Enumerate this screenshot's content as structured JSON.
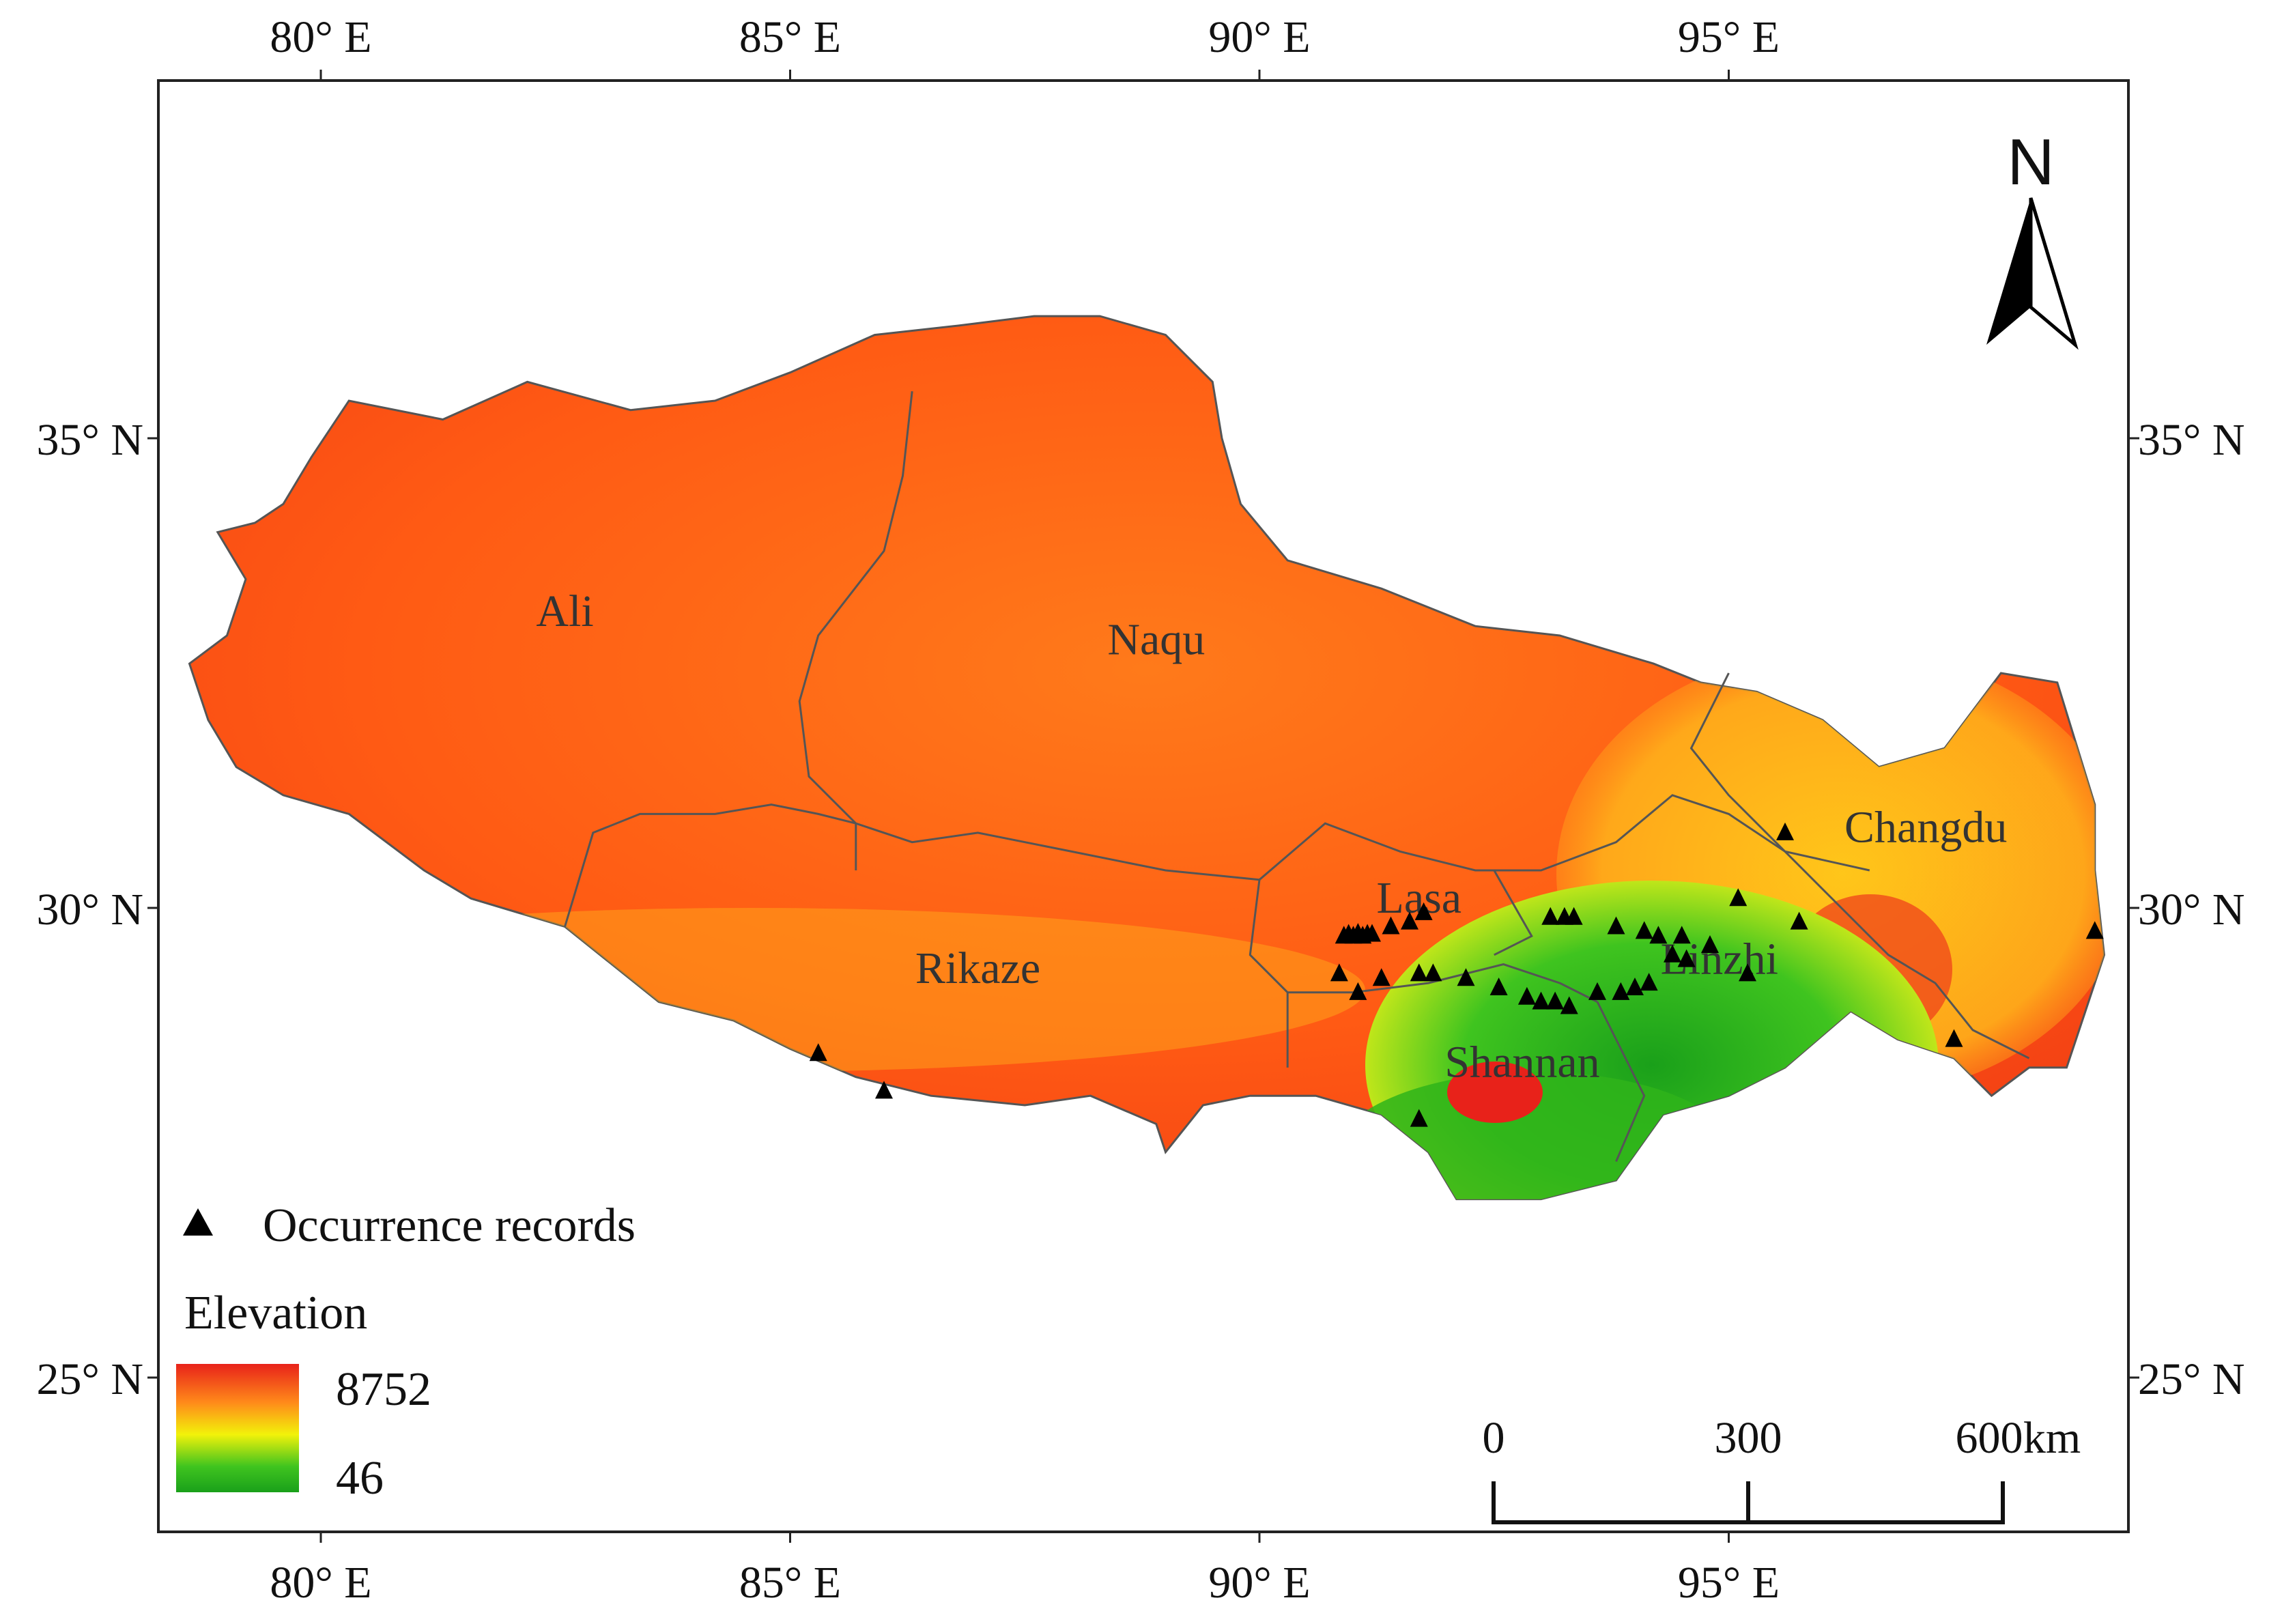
{
  "axes": {
    "lon_labels": [
      "80° E",
      "85° E",
      "90° E",
      "95° E"
    ],
    "lat_labels": [
      "35° N",
      "30° N",
      "25° N"
    ]
  },
  "regions": [
    {
      "key": "ali",
      "name": "Ali"
    },
    {
      "key": "naqu",
      "name": "Naqu"
    },
    {
      "key": "rikaze",
      "name": "Rikaze"
    },
    {
      "key": "lasa",
      "name": "Lasa"
    },
    {
      "key": "linzhi",
      "name": "Linzhi"
    },
    {
      "key": "shannan",
      "name": "Shannan"
    },
    {
      "key": "changdu",
      "name": "Changdu"
    }
  ],
  "legend": {
    "points_label": "Occurrence records",
    "elevation_title": "Elevation",
    "elevation_max": "8752",
    "elevation_min": "46",
    "colors": [
      "#e8221a",
      "#ff8a1a",
      "#f2f20a",
      "#3fc41f",
      "#1aa01a"
    ]
  },
  "north_arrow": {
    "label": "N"
  },
  "scale_bar": {
    "ticks": [
      "0",
      "300",
      "600"
    ],
    "unit": "km"
  },
  "occurrences": [
    [
      90.9,
      29.7
    ],
    [
      90.95,
      29.72
    ],
    [
      91.0,
      29.7
    ],
    [
      91.05,
      29.73
    ],
    [
      91.1,
      29.7
    ],
    [
      91.15,
      29.72
    ],
    [
      91.2,
      29.72
    ],
    [
      91.4,
      29.8
    ],
    [
      91.6,
      29.85
    ],
    [
      91.75,
      29.95
    ],
    [
      90.85,
      29.3
    ],
    [
      91.05,
      29.1
    ],
    [
      91.3,
      29.25
    ],
    [
      91.7,
      29.3
    ],
    [
      91.85,
      29.3
    ],
    [
      92.2,
      29.25
    ],
    [
      92.55,
      29.15
    ],
    [
      92.85,
      29.05
    ],
    [
      93.0,
      29.0
    ],
    [
      93.15,
      29.0
    ],
    [
      93.3,
      28.95
    ],
    [
      93.6,
      29.1
    ],
    [
      93.85,
      29.1
    ],
    [
      94.0,
      29.15
    ],
    [
      94.15,
      29.2
    ],
    [
      93.1,
      29.9
    ],
    [
      93.25,
      29.9
    ],
    [
      93.35,
      29.9
    ],
    [
      93.8,
      29.8
    ],
    [
      94.1,
      29.75
    ],
    [
      94.25,
      29.7
    ],
    [
      94.5,
      29.7
    ],
    [
      94.4,
      29.5
    ],
    [
      94.55,
      29.45
    ],
    [
      94.8,
      29.6
    ],
    [
      95.2,
      29.3
    ],
    [
      95.1,
      30.1
    ],
    [
      95.6,
      30.8
    ],
    [
      95.75,
      29.85
    ],
    [
      97.4,
      28.6
    ],
    [
      98.9,
      29.75
    ],
    [
      85.3,
      28.45
    ],
    [
      86.0,
      28.05
    ],
    [
      91.7,
      27.75
    ]
  ]
}
